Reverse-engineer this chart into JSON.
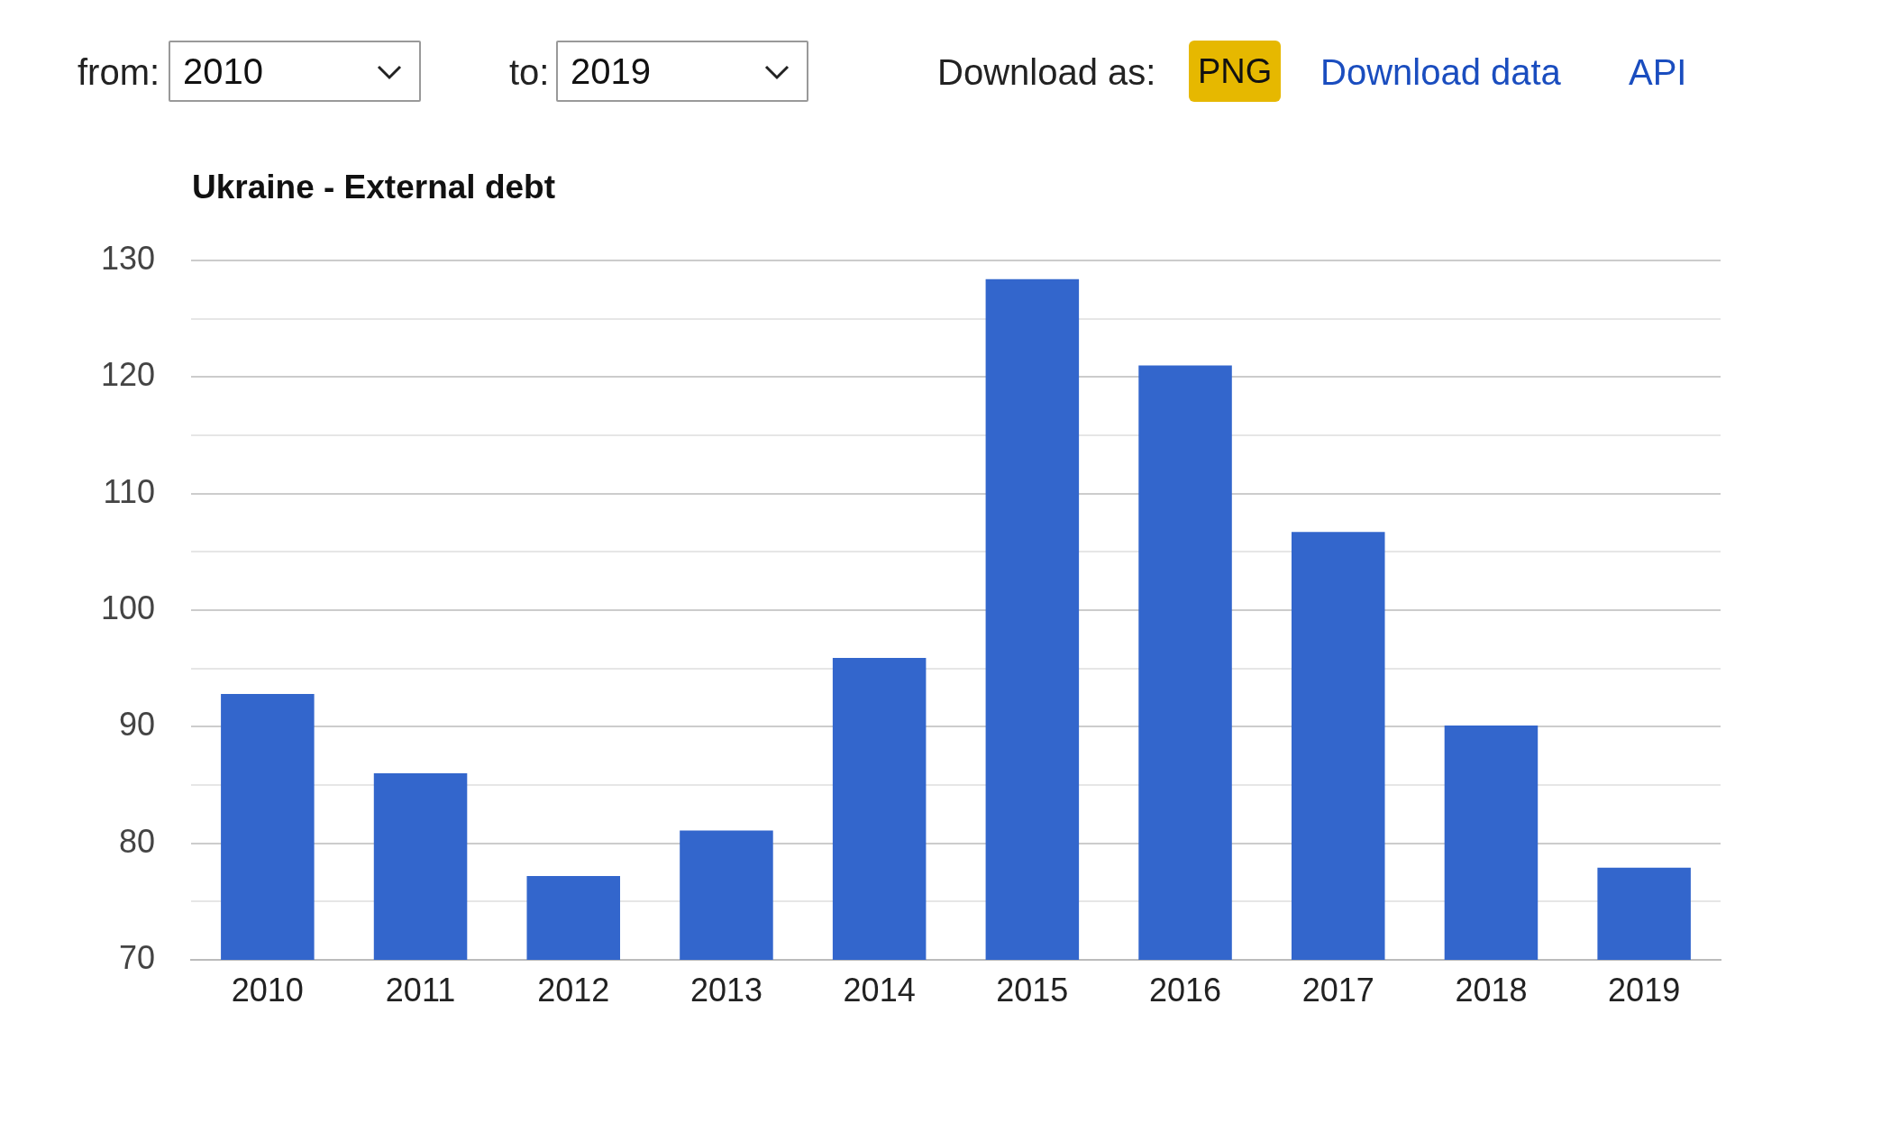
{
  "chart_data": {
    "type": "bar",
    "title": "Ukraine - External debt",
    "categories": [
      "2010",
      "2011",
      "2012",
      "2013",
      "2014",
      "2015",
      "2016",
      "2017",
      "2018",
      "2019"
    ],
    "values": [
      92.8,
      86.0,
      77.2,
      81.1,
      95.9,
      128.4,
      121.0,
      106.7,
      90.1,
      77.9
    ],
    "color": "#3366cc",
    "ylim": [
      70,
      130
    ],
    "yticks": [
      70,
      {
        "value": 75,
        "label": null
      },
      80,
      {
        "value": 85,
        "label": null
      },
      90,
      {
        "value": 95,
        "label": null
      },
      100,
      {
        "value": 105,
        "label": null
      },
      110,
      {
        "value": 115,
        "label": null
      },
      120,
      {
        "value": 125,
        "label": null
      },
      130
    ],
    "grid": "y",
    "legend": false,
    "annotations": [
      "from:",
      "to:",
      "Download as:",
      "PNG",
      "Download data",
      "API"
    ]
  }
}
